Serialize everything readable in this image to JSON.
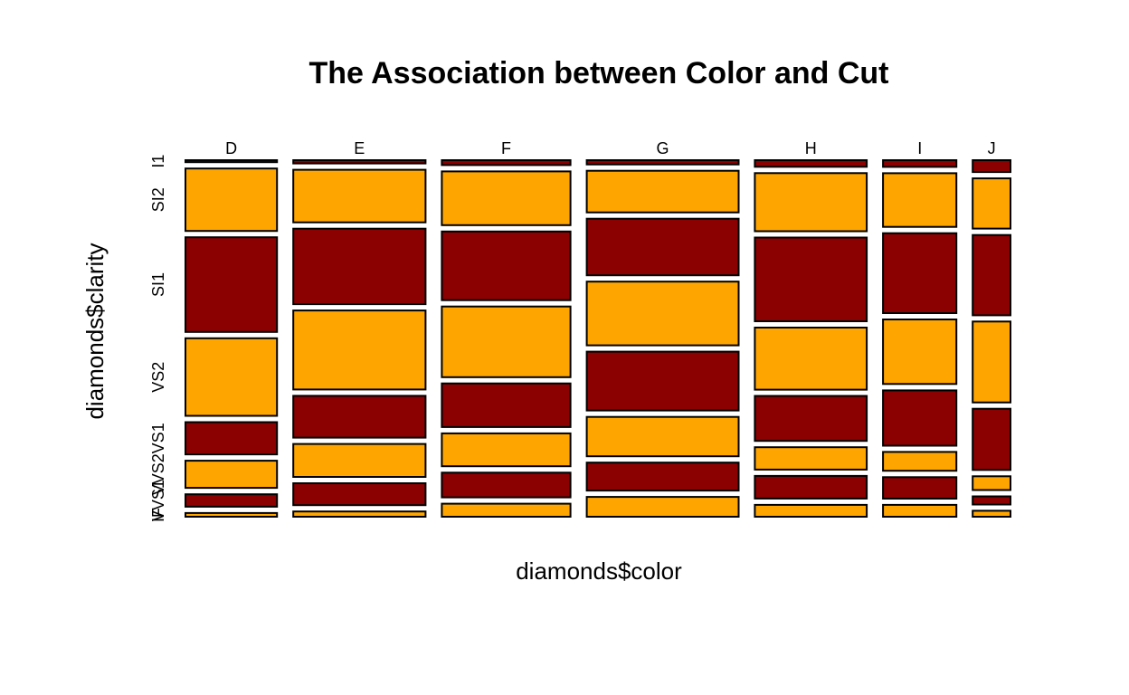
{
  "chart_data": {
    "type": "mosaic",
    "title": "The Association between Color and Cut",
    "xlabel": "diamonds$color",
    "ylabel": "diamonds$clarity",
    "columns": [
      "D",
      "E",
      "F",
      "G",
      "H",
      "I",
      "J"
    ],
    "column_proportions": [
      0.126,
      0.182,
      0.177,
      0.209,
      0.154,
      0.101,
      0.052
    ],
    "rows": [
      "I1",
      "SI2",
      "SI1",
      "VS2",
      "VS1",
      "VVS2",
      "VVS1",
      "IF"
    ],
    "row_proportions": {
      "D": [
        0.006,
        0.186,
        0.282,
        0.231,
        0.096,
        0.081,
        0.037,
        0.011
      ],
      "E": [
        0.01,
        0.161,
        0.231,
        0.242,
        0.128,
        0.101,
        0.067,
        0.016
      ],
      "F": [
        0.015,
        0.165,
        0.211,
        0.217,
        0.134,
        0.101,
        0.076,
        0.04
      ],
      "G": [
        0.013,
        0.128,
        0.174,
        0.196,
        0.181,
        0.121,
        0.086,
        0.061
      ],
      "H": [
        0.02,
        0.177,
        0.255,
        0.189,
        0.137,
        0.068,
        0.069,
        0.036
      ],
      "I": [
        0.021,
        0.168,
        0.25,
        0.202,
        0.173,
        0.059,
        0.067,
        0.037
      ],
      "J": [
        0.038,
        0.161,
        0.257,
        0.259,
        0.196,
        0.044,
        0.026,
        0.019
      ]
    },
    "fill_colors": [
      "#8b0000",
      "#ffa500"
    ],
    "grid": false,
    "legend": "none"
  }
}
